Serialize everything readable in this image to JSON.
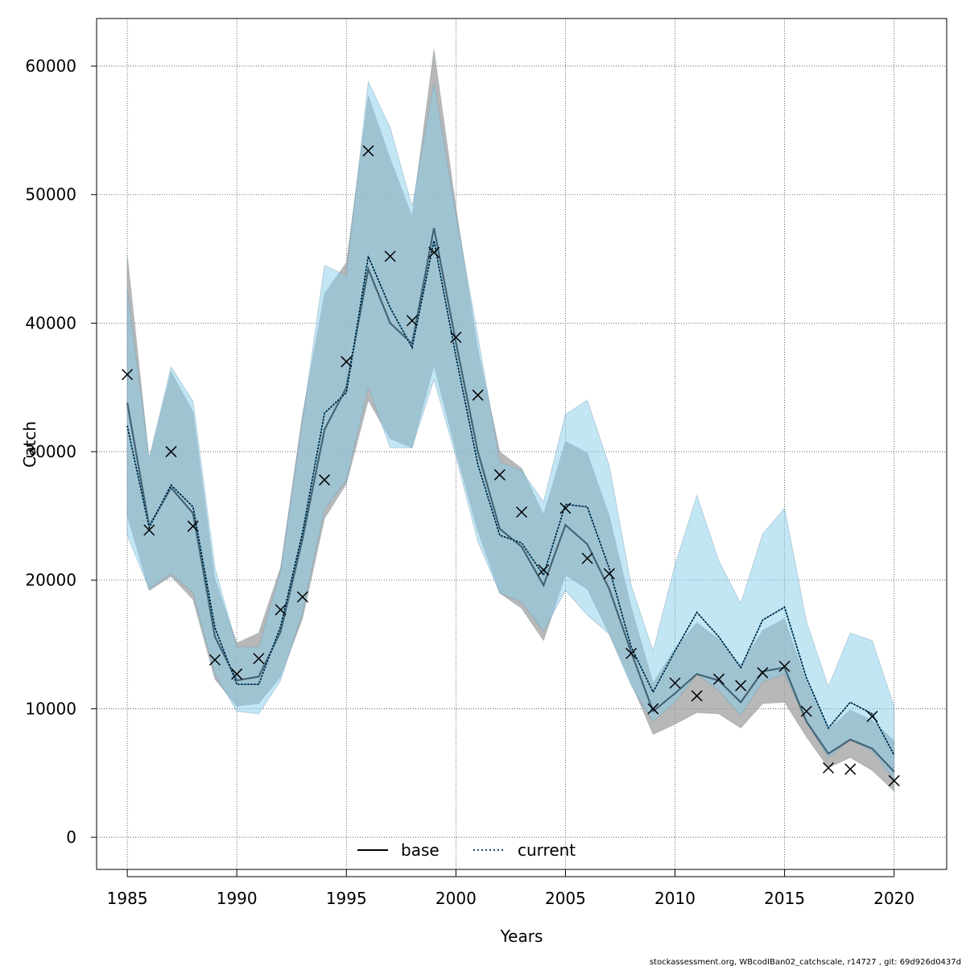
{
  "chart_data": {
    "type": "line",
    "title": "",
    "xlabel": "Years",
    "ylabel": "Catch",
    "xlim": [
      1983.6,
      2022.4
    ],
    "ylim": [
      -2500,
      63700
    ],
    "x_ticks": [
      1985,
      1990,
      1995,
      2000,
      2005,
      2010,
      2015,
      2020
    ],
    "y_ticks": [
      0,
      10000,
      20000,
      30000,
      40000,
      50000,
      60000
    ],
    "grid": true,
    "legend_position": "bottom-center",
    "x": [
      1985,
      1986,
      1987,
      1988,
      1989,
      1990,
      1991,
      1992,
      1993,
      1994,
      1995,
      1996,
      1997,
      1998,
      1999,
      2000,
      2001,
      2002,
      2003,
      2004,
      2005,
      2006,
      2007,
      2008,
      2009,
      2010,
      2011,
      2012,
      2013,
      2014,
      2015,
      2016,
      2017,
      2018,
      2019,
      2020
    ],
    "series": [
      {
        "name": "base",
        "line_style": "solid",
        "color": "#000000",
        "band_color": "#a0a0a0",
        "values": [
          33800,
          24200,
          27200,
          25200,
          15600,
          12200,
          12500,
          16000,
          23200,
          31700,
          35000,
          44200,
          40000,
          38400,
          47400,
          38500,
          30000,
          24000,
          22600,
          19600,
          24300,
          22800,
          19300,
          14400,
          9800,
          11200,
          12700,
          12200,
          10500,
          12900,
          13200,
          9000,
          6500,
          7600,
          6900,
          5100
        ],
        "lower": [
          25000,
          19200,
          20300,
          18500,
          12300,
          10200,
          10400,
          12500,
          17000,
          24800,
          27500,
          34000,
          31000,
          30300,
          36700,
          30000,
          23800,
          19000,
          17800,
          15300,
          20400,
          19300,
          15800,
          12000,
          8000,
          8800,
          9700,
          9600,
          8500,
          10400,
          10500,
          7800,
          5400,
          6200,
          5200,
          3600
        ],
        "upper": [
          45300,
          29400,
          36200,
          33100,
          20100,
          15100,
          15900,
          21000,
          32900,
          42300,
          44700,
          57700,
          52800,
          48300,
          61300,
          49000,
          38000,
          30000,
          28700,
          25100,
          30800,
          29900,
          25000,
          17900,
          12000,
          14700,
          16700,
          15400,
          13400,
          16100,
          17000,
          12100,
          8400,
          9900,
          9100,
          7500
        ]
      },
      {
        "name": "current",
        "line_style": "dotted",
        "color": "#000000",
        "band_color": "#87ceeb",
        "values": [
          32000,
          24100,
          27400,
          25700,
          16300,
          11900,
          11900,
          16400,
          23700,
          33000,
          34600,
          45200,
          41200,
          38100,
          46400,
          37400,
          29000,
          23500,
          22900,
          20400,
          25900,
          25700,
          20900,
          14800,
          11300,
          14500,
          17500,
          15600,
          13200,
          16900,
          17900,
          12400,
          8500,
          10500,
          9600,
          6400
        ],
        "lower": [
          23500,
          19300,
          20500,
          19000,
          12700,
          9800,
          9600,
          12200,
          17500,
          25500,
          27800,
          35000,
          30300,
          30300,
          35600,
          29600,
          23000,
          19000,
          18300,
          16000,
          19200,
          17300,
          15800,
          11800,
          9000,
          10500,
          12700,
          11400,
          9500,
          12100,
          12700,
          9000,
          6200,
          7600,
          6700,
          4500
        ],
        "upper": [
          42600,
          29500,
          36600,
          33900,
          21000,
          14800,
          14800,
          20700,
          32400,
          44500,
          43700,
          58800,
          55200,
          49100,
          58700,
          48400,
          39000,
          29200,
          28500,
          26100,
          32900,
          34000,
          28900,
          19600,
          14500,
          21200,
          26600,
          21500,
          18200,
          23600,
          25600,
          16800,
          11700,
          15900,
          15300,
          10200
        ]
      }
    ],
    "observed": {
      "marker": "x",
      "x": [
        1985,
        1986,
        1987,
        1988,
        1989,
        1990,
        1991,
        1992,
        1993,
        1994,
        1995,
        1996,
        1997,
        1998,
        1999,
        2000,
        2001,
        2002,
        2003,
        2004,
        2005,
        2006,
        2007,
        2008,
        2009,
        2010,
        2011,
        2012,
        2013,
        2014,
        2015,
        2016,
        2017,
        2018,
        2019,
        2020
      ],
      "y": [
        36000,
        23900,
        30000,
        24200,
        13800,
        12700,
        13900,
        17700,
        18700,
        27800,
        37000,
        53400,
        45200,
        40200,
        45500,
        38900,
        34400,
        28200,
        25300,
        20800,
        25600,
        21700,
        20500,
        14300,
        10000,
        12000,
        11000,
        12300,
        11800,
        12800,
        13300,
        9800,
        5400,
        5300,
        9400,
        4400
      ]
    }
  },
  "legend": [
    {
      "label": "base",
      "line_style": "solid"
    },
    {
      "label": "current",
      "line_style": "dotted"
    }
  ],
  "footer": "stockassessment.org, WBcodIBan02_catchscale, r14727 , git: 69d926d0437d"
}
